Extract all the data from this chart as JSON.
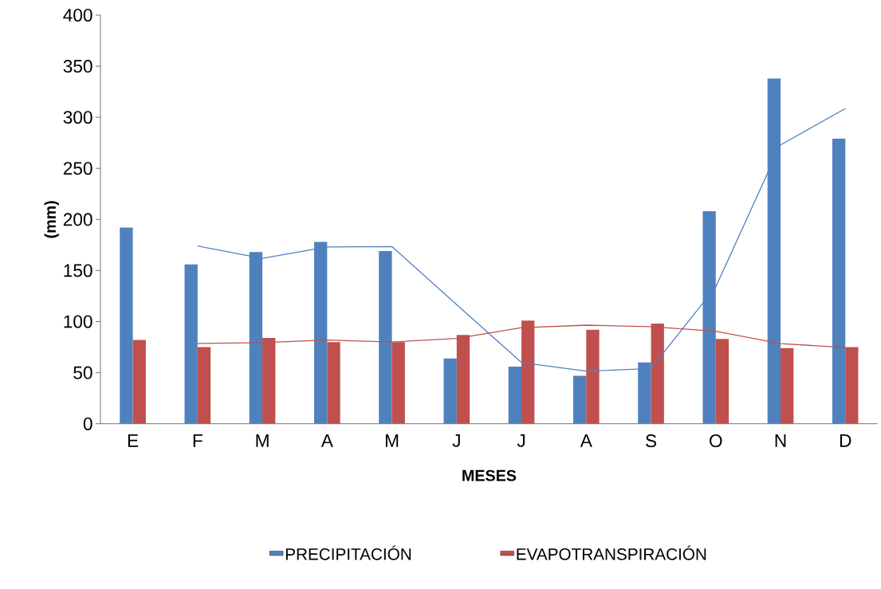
{
  "chart_data": {
    "type": "bar",
    "xlabel": "MESES",
    "ylabel": "(mm)",
    "categories": [
      "E",
      "F",
      "M",
      "A",
      "M",
      "J",
      "J",
      "A",
      "S",
      "O",
      "N",
      "D"
    ],
    "ylim": [
      0,
      400
    ],
    "yticks": [
      0,
      50,
      100,
      150,
      200,
      250,
      300,
      350,
      400
    ],
    "legend": "bottom",
    "grid": false,
    "series": [
      {
        "name": "PRECIPITACIÓN",
        "color": "#4f81bd",
        "values": [
          192,
          156,
          168,
          178,
          169,
          64,
          56,
          47,
          60,
          208,
          338,
          279
        ]
      },
      {
        "name": "EVAPOTRANSPIRACIÓN",
        "color": "#c0504d",
        "values": [
          82,
          75,
          84,
          80,
          80,
          87,
          101,
          92,
          98,
          83,
          74,
          75
        ]
      },
      {
        "type": "line",
        "color": "#4f81bd",
        "values": [
          null,
          174,
          162,
          173,
          173.5,
          116.5,
          60,
          51.5,
          54,
          134,
          273,
          308.5
        ]
      },
      {
        "type": "line",
        "color": "#c0504d",
        "values": [
          null,
          78.5,
          79.5,
          82,
          80,
          83.5,
          94,
          96.5,
          95,
          90.5,
          78.5,
          74.5
        ]
      }
    ]
  }
}
